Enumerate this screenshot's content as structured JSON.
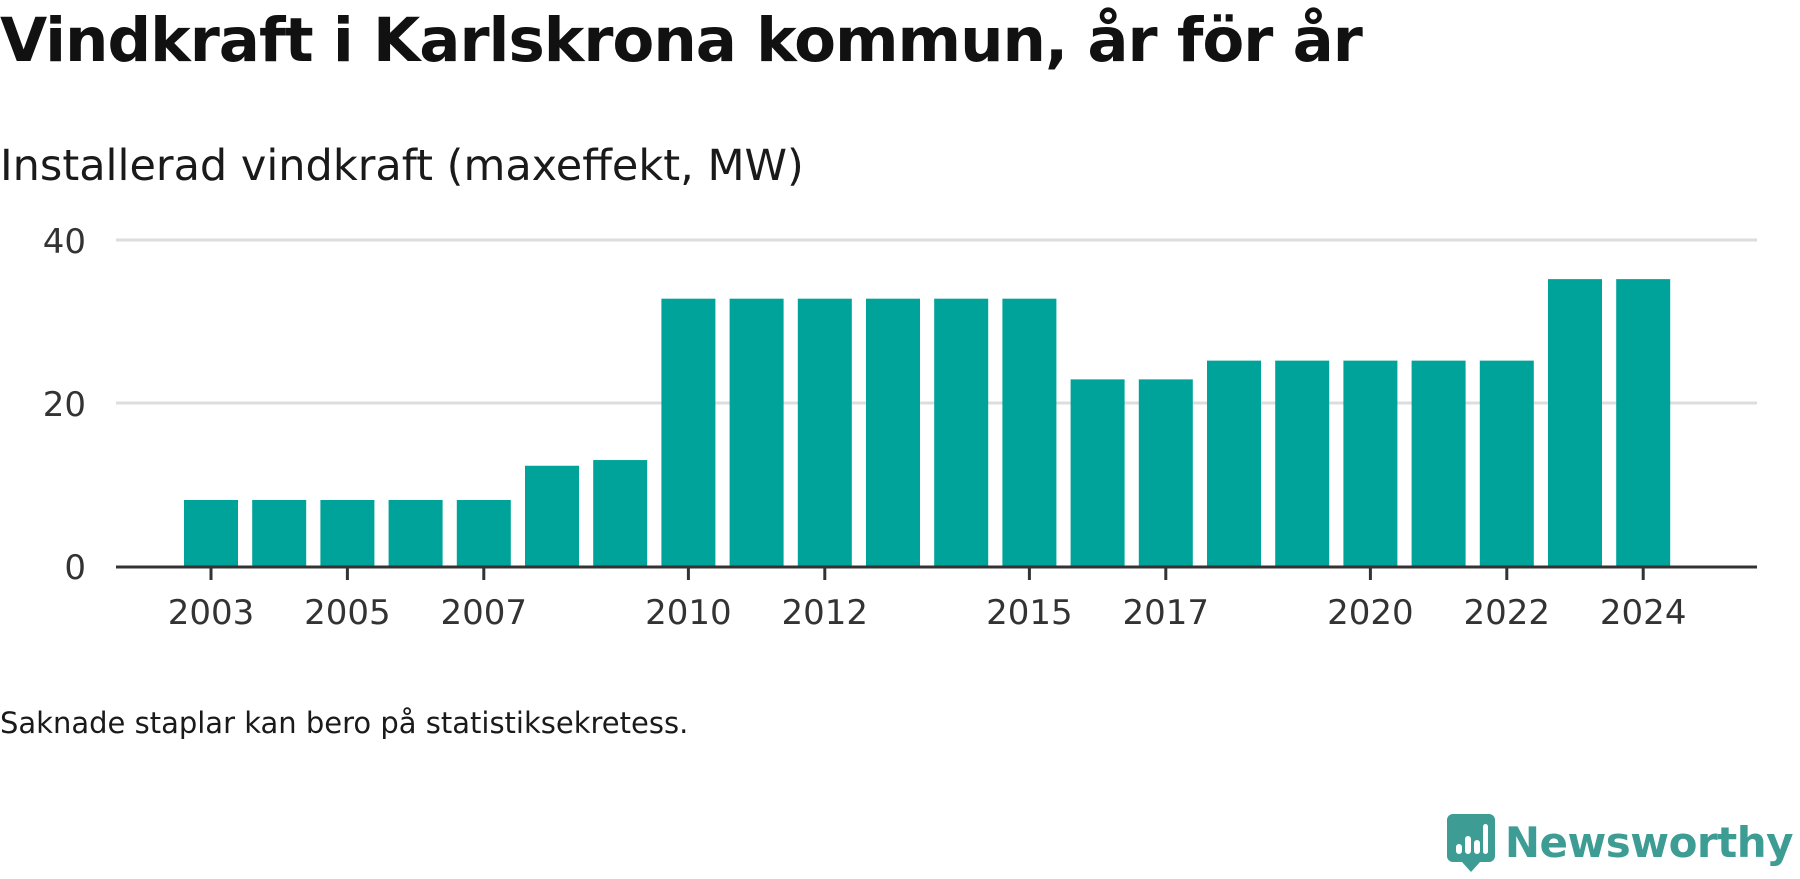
{
  "title": "Vindkraft i Karlskrona kommun, år för år",
  "subtitle": "Installerad vindkraft (maxeffekt, MW)",
  "note": "Saknade staplar kan bero på statistiksekretess.",
  "brand": {
    "name": "Newsworthy",
    "icon": "newsworthy-logo-icon",
    "color": "#3d9c94"
  },
  "chart_data": {
    "type": "bar",
    "categories": [
      "2003",
      "2004",
      "2005",
      "2006",
      "2007",
      "2008",
      "2009",
      "2010",
      "2011",
      "2012",
      "2013",
      "2014",
      "2015",
      "2016",
      "2017",
      "2018",
      "2019",
      "2020",
      "2021",
      "2022",
      "2023",
      "2024"
    ],
    "values": [
      8.1,
      8.1,
      8.1,
      8.1,
      8.1,
      12.3,
      13.0,
      32.8,
      32.8,
      32.8,
      32.8,
      32.8,
      32.8,
      22.9,
      22.9,
      25.2,
      25.2,
      25.2,
      25.2,
      25.2,
      35.2,
      35.2
    ],
    "x_tick_labels": [
      "2003",
      "2005",
      "2007",
      "2010",
      "2012",
      "2015",
      "2017",
      "2020",
      "2022",
      "2024"
    ],
    "y_ticks": [
      0,
      20,
      40
    ],
    "ylim": [
      0,
      40
    ],
    "grid": true,
    "bar_color": "#00a39a",
    "gridline_color": "#dddddd",
    "axis_color": "#333333"
  }
}
